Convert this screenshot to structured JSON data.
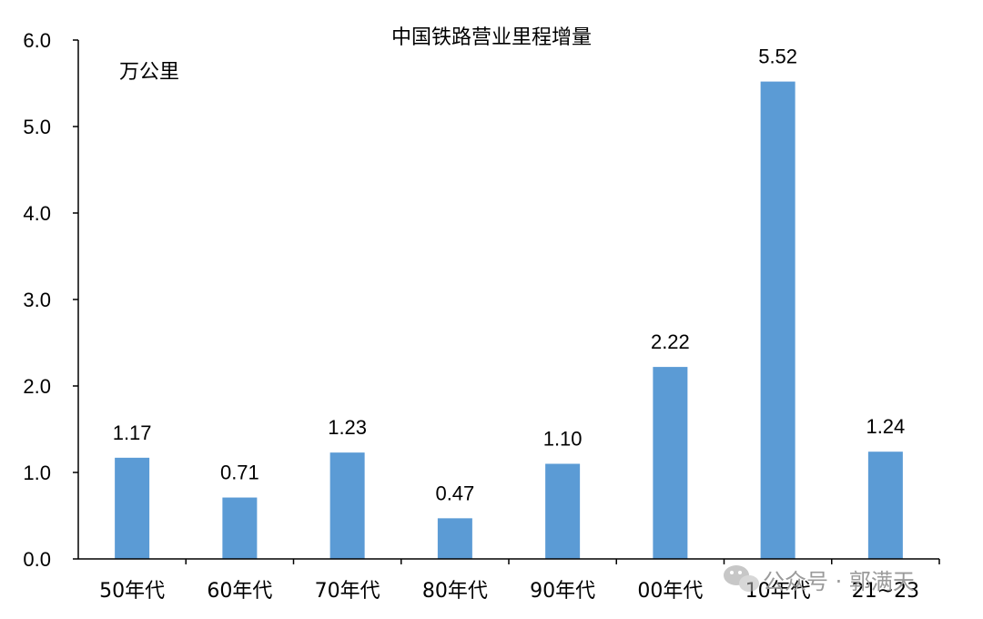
{
  "chart_data": {
    "type": "bar",
    "title": "中国铁路营业里程增量",
    "unit_label": "万公里",
    "categories": [
      "50年代",
      "60年代",
      "70年代",
      "80年代",
      "90年代",
      "00年代",
      "10年代",
      "21~23"
    ],
    "values": [
      1.17,
      0.71,
      1.23,
      0.47,
      1.1,
      2.22,
      5.52,
      1.24
    ],
    "value_labels": [
      "1.17",
      "0.71",
      "1.23",
      "0.47",
      "1.10",
      "2.22",
      "5.52",
      "1.24"
    ],
    "ylim": [
      0,
      6
    ],
    "yticks": [
      "0.0",
      "1.0",
      "2.0",
      "3.0",
      "4.0",
      "5.0",
      "6.0"
    ],
    "bar_color": "#5b9bd5",
    "grid": false,
    "legend": "none"
  },
  "watermark": {
    "text": "公众号 · 郭满天",
    "icon": "wechat-icon"
  }
}
